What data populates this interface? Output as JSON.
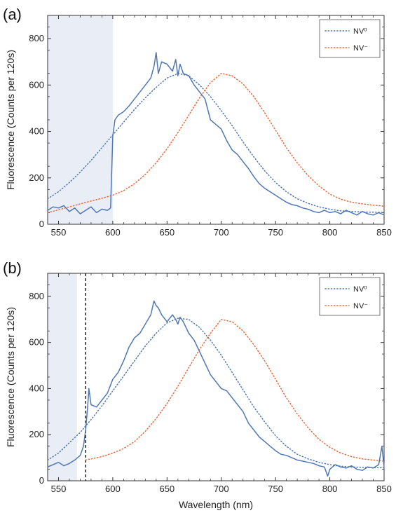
{
  "chart_data": [
    {
      "type": "line",
      "panel_label": "(a)",
      "title": "",
      "xlabel": "",
      "ylabel": "Fluorescence (Counts per 120s)",
      "xlim": [
        540,
        850
      ],
      "ylim": [
        0,
        900
      ],
      "xticks": [
        550,
        600,
        650,
        700,
        750,
        800,
        850
      ],
      "yticks": [
        0,
        200,
        400,
        600,
        800
      ],
      "shaded_region": [
        540,
        600
      ],
      "vline": null,
      "legend_placement": "top-right",
      "series": [
        {
          "name": "NV⁰",
          "style": "dotted",
          "color": "#4f77b5",
          "x": [
            540,
            550,
            560,
            570,
            580,
            590,
            600,
            610,
            620,
            630,
            640,
            650,
            660,
            670,
            680,
            690,
            700,
            710,
            720,
            730,
            740,
            750,
            760,
            770,
            780,
            790,
            800,
            810,
            820,
            830,
            840,
            850
          ],
          "y": [
            110,
            140,
            180,
            225,
            275,
            330,
            385,
            440,
            495,
            545,
            590,
            630,
            650,
            640,
            600,
            550,
            490,
            425,
            355,
            290,
            230,
            180,
            140,
            110,
            90,
            75,
            65,
            58,
            55,
            53,
            52,
            51
          ]
        },
        {
          "name": "NV⁻",
          "style": "dotted",
          "color": "#e8683a",
          "x": [
            540,
            550,
            560,
            570,
            580,
            590,
            600,
            610,
            620,
            630,
            640,
            650,
            660,
            670,
            680,
            690,
            700,
            710,
            720,
            730,
            740,
            750,
            760,
            770,
            780,
            790,
            800,
            810,
            820,
            830,
            840,
            850
          ],
          "y": [
            50,
            62,
            75,
            88,
            100,
            112,
            125,
            145,
            175,
            215,
            265,
            325,
            395,
            470,
            545,
            610,
            650,
            640,
            605,
            550,
            480,
            405,
            330,
            265,
            210,
            165,
            130,
            108,
            95,
            88,
            82,
            78
          ]
        },
        {
          "name": "",
          "style": "solid",
          "color": "#4f77b5",
          "x": [
            540,
            545,
            550,
            555,
            560,
            565,
            570,
            575,
            580,
            585,
            590,
            595,
            598,
            600,
            602,
            605,
            610,
            615,
            620,
            625,
            630,
            635,
            638,
            640,
            642,
            645,
            650,
            655,
            658,
            660,
            662,
            665,
            670,
            675,
            680,
            685,
            690,
            695,
            700,
            705,
            710,
            715,
            720,
            725,
            730,
            735,
            740,
            745,
            750,
            755,
            760,
            765,
            770,
            775,
            780,
            785,
            790,
            795,
            800,
            805,
            810,
            815,
            820,
            825,
            830,
            835,
            840,
            845,
            850
          ],
          "y": [
            60,
            75,
            70,
            80,
            55,
            70,
            45,
            60,
            75,
            50,
            65,
            60,
            70,
            380,
            450,
            470,
            485,
            510,
            540,
            570,
            600,
            630,
            680,
            740,
            650,
            700,
            690,
            660,
            710,
            640,
            690,
            650,
            640,
            600,
            570,
            540,
            450,
            430,
            410,
            360,
            320,
            300,
            270,
            240,
            205,
            175,
            155,
            140,
            125,
            110,
            95,
            85,
            80,
            70,
            65,
            55,
            50,
            60,
            50,
            55,
            45,
            60,
            50,
            40,
            55,
            45,
            40,
            50,
            40
          ]
        }
      ]
    },
    {
      "type": "line",
      "panel_label": "(b)",
      "title": "",
      "xlabel": "Wavelength (nm)",
      "ylabel": "Fluorescence (Counts per 120s)",
      "xlim": [
        540,
        850
      ],
      "ylim": [
        0,
        900
      ],
      "xticks": [
        550,
        600,
        650,
        700,
        750,
        800,
        850
      ],
      "yticks": [
        0,
        200,
        400,
        600,
        800
      ],
      "shaded_region": [
        540,
        567
      ],
      "vline": 575,
      "legend_placement": "top-right",
      "series": [
        {
          "name": "NV⁰",
          "style": "dotted",
          "color": "#4f77b5",
          "x": [
            540,
            550,
            560,
            570,
            580,
            590,
            600,
            610,
            620,
            630,
            640,
            650,
            660,
            670,
            680,
            690,
            700,
            710,
            720,
            730,
            740,
            750,
            760,
            770,
            780,
            790,
            800,
            810,
            820,
            830,
            840,
            850
          ],
          "y": [
            90,
            120,
            165,
            210,
            265,
            325,
            390,
            455,
            520,
            585,
            640,
            685,
            705,
            700,
            665,
            610,
            545,
            470,
            395,
            320,
            255,
            195,
            150,
            115,
            95,
            80,
            70,
            63,
            60,
            58,
            57,
            56
          ]
        },
        {
          "name": "NV⁻",
          "style": "dotted",
          "color": "#e8683a",
          "x": [
            575,
            580,
            590,
            600,
            610,
            620,
            630,
            640,
            650,
            660,
            670,
            680,
            690,
            700,
            710,
            720,
            730,
            740,
            750,
            760,
            770,
            780,
            790,
            800,
            810,
            820,
            830,
            840,
            850
          ],
          "y": [
            90,
            95,
            105,
            120,
            140,
            170,
            215,
            270,
            335,
            410,
            490,
            570,
            640,
            700,
            690,
            650,
            590,
            520,
            440,
            360,
            290,
            230,
            180,
            145,
            120,
            105,
            95,
            90,
            85
          ]
        },
        {
          "name": "",
          "style": "solid",
          "color": "#4f77b5",
          "x": [
            540,
            545,
            550,
            555,
            560,
            565,
            570,
            573,
            575,
            577,
            578,
            580,
            585,
            590,
            595,
            600,
            605,
            610,
            615,
            620,
            625,
            630,
            635,
            638,
            640,
            642,
            645,
            650,
            655,
            658,
            660,
            662,
            665,
            670,
            675,
            680,
            685,
            690,
            695,
            700,
            705,
            710,
            715,
            720,
            725,
            730,
            735,
            740,
            745,
            750,
            755,
            760,
            765,
            770,
            775,
            780,
            785,
            790,
            795,
            798,
            800,
            805,
            810,
            815,
            820,
            825,
            830,
            835,
            840,
            845,
            848,
            850
          ],
          "y": [
            60,
            70,
            80,
            65,
            75,
            90,
            110,
            150,
            220,
            330,
            400,
            330,
            320,
            350,
            380,
            440,
            470,
            520,
            580,
            620,
            640,
            680,
            720,
            780,
            760,
            750,
            720,
            690,
            720,
            700,
            680,
            710,
            690,
            640,
            610,
            560,
            510,
            460,
            430,
            400,
            390,
            360,
            330,
            300,
            250,
            220,
            190,
            170,
            150,
            130,
            115,
            110,
            100,
            90,
            85,
            80,
            75,
            65,
            60,
            20,
            50,
            70,
            60,
            55,
            65,
            50,
            45,
            60,
            55,
            70,
            150,
            60
          ]
        }
      ]
    }
  ]
}
